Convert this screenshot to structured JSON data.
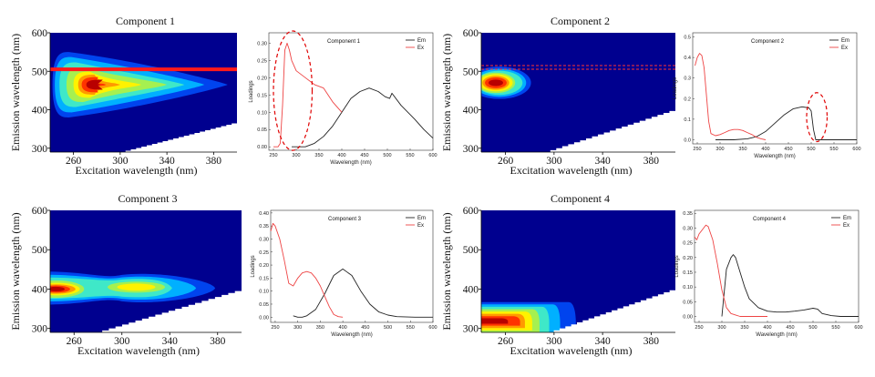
{
  "chart_data": [
    {
      "type": "heatmap",
      "title": "Component 1",
      "xlabel": "Excitation wavelength (nm)",
      "ylabel": "Emission wavelength (nm)",
      "xticks": [
        260,
        300,
        340,
        380
      ],
      "yticks": [
        300,
        400,
        500,
        600
      ],
      "xlim": [
        240,
        400
      ],
      "ylim": [
        290,
        600
      ],
      "peaks": [
        {
          "ex": 278,
          "em": 465
        }
      ],
      "annotation": {
        "type": "horizontal-line",
        "em": 505,
        "style": "solid"
      }
    },
    {
      "type": "line",
      "title": "Component 1",
      "xlabel": "Wavelength (nm)",
      "ylabel": "Loadings",
      "xticks": [
        250,
        300,
        350,
        400,
        450,
        500,
        550,
        600
      ],
      "yticks": [
        0.0,
        0.05,
        0.1,
        0.15,
        0.2,
        0.25,
        0.3
      ],
      "xlim": [
        240,
        600
      ],
      "ylim": [
        -0.01,
        0.33
      ],
      "legend": [
        "Em",
        "Ex"
      ],
      "series": [
        {
          "name": "Em",
          "color": "#222222",
          "x": [
            290,
            320,
            340,
            360,
            380,
            400,
            420,
            440,
            460,
            480,
            495,
            505,
            510,
            530,
            560,
            580,
            600
          ],
          "y": [
            0.0,
            0.0,
            0.01,
            0.03,
            0.06,
            0.1,
            0.14,
            0.16,
            0.17,
            0.16,
            0.145,
            0.14,
            0.155,
            0.12,
            0.08,
            0.05,
            0.025
          ]
        },
        {
          "name": "Ex",
          "color": "#ee4444",
          "x": [
            250,
            260,
            265,
            270,
            275,
            280,
            285,
            290,
            300,
            320,
            340,
            360,
            380,
            400
          ],
          "y": [
            0.0,
            0.0,
            0.01,
            0.12,
            0.28,
            0.3,
            0.28,
            0.25,
            0.22,
            0.2,
            0.18,
            0.17,
            0.13,
            0.1
          ]
        }
      ],
      "annotation": {
        "type": "dashed-ellipse",
        "x_range": [
          250,
          335
        ],
        "y_range": [
          -0.005,
          0.33
        ]
      }
    },
    {
      "type": "heatmap",
      "title": "Component 2",
      "xlabel": "Excitation wavelength (nm)",
      "ylabel": "Emission wavelength (nm)",
      "xticks": [
        260,
        300,
        340,
        380
      ],
      "yticks": [
        300,
        400,
        500,
        600
      ],
      "xlim": [
        240,
        400
      ],
      "ylim": [
        290,
        600
      ],
      "peaks": [
        {
          "ex": 252,
          "em": 470
        }
      ],
      "annotation": {
        "type": "horizontal-line",
        "em": 510,
        "style": "dashed"
      }
    },
    {
      "type": "line",
      "title": "Component 2",
      "xlabel": "Wavelength (nm)",
      "ylabel": "Loadings",
      "xticks": [
        250,
        300,
        350,
        400,
        450,
        500,
        550,
        600
      ],
      "yticks": [
        0.0,
        0.1,
        0.2,
        0.3,
        0.4,
        0.5
      ],
      "xlim": [
        240,
        600
      ],
      "ylim": [
        -0.02,
        0.52
      ],
      "legend": [
        "Em",
        "Ex"
      ],
      "series": [
        {
          "name": "Em",
          "color": "#222222",
          "x": [
            290,
            330,
            360,
            380,
            400,
            420,
            440,
            460,
            480,
            495,
            500,
            505,
            510,
            530,
            560,
            600
          ],
          "y": [
            0.0,
            0.0,
            0.005,
            0.015,
            0.04,
            0.08,
            0.12,
            0.15,
            0.16,
            0.155,
            0.14,
            0.05,
            0.0,
            0.0,
            0.0,
            0.0
          ]
        },
        {
          "name": "Ex",
          "color": "#ee4444",
          "x": [
            245,
            250,
            255,
            260,
            265,
            270,
            275,
            280,
            290,
            300,
            310,
            320,
            330,
            340,
            350,
            360,
            370,
            380,
            390,
            400
          ],
          "y": [
            0.36,
            0.4,
            0.42,
            0.41,
            0.35,
            0.22,
            0.09,
            0.03,
            0.02,
            0.025,
            0.035,
            0.045,
            0.05,
            0.05,
            0.045,
            0.035,
            0.025,
            0.012,
            0.005,
            0.0
          ]
        }
      ],
      "annotation": {
        "type": "dashed-ellipse",
        "x_range": [
          490,
          535
        ],
        "y_range": [
          0.0,
          0.22
        ]
      }
    },
    {
      "type": "heatmap",
      "title": "Component 3",
      "xlabel": "Excitation wavelength (nm)",
      "ylabel": "Emission wavelength (nm)",
      "xticks": [
        260,
        300,
        340,
        380
      ],
      "yticks": [
        300,
        400,
        500,
        600
      ],
      "xlim": [
        240,
        400
      ],
      "ylim": [
        290,
        600
      ],
      "peaks": [
        {
          "ex": 245,
          "em": 400
        },
        {
          "ex": 312,
          "em": 405
        }
      ]
    },
    {
      "type": "line",
      "title": "Component 3",
      "xlabel": "Wavelength (nm)",
      "ylabel": "Loadings",
      "xticks": [
        250,
        300,
        350,
        400,
        450,
        500,
        550,
        600
      ],
      "yticks": [
        0.0,
        0.05,
        0.1,
        0.15,
        0.2,
        0.25,
        0.3,
        0.35,
        0.4
      ],
      "xlim": [
        240,
        600
      ],
      "ylim": [
        -0.02,
        0.41
      ],
      "legend": [
        "Em",
        "Ex"
      ],
      "series": [
        {
          "name": "Em",
          "color": "#222222",
          "x": [
            290,
            300,
            310,
            320,
            340,
            360,
            380,
            400,
            420,
            440,
            460,
            480,
            500,
            520,
            560,
            600
          ],
          "y": [
            0.005,
            0.0,
            0.0,
            0.005,
            0.03,
            0.09,
            0.16,
            0.185,
            0.16,
            0.1,
            0.05,
            0.02,
            0.008,
            0.002,
            0.0,
            0.0
          ]
        },
        {
          "name": "Ex",
          "color": "#ee4444",
          "x": [
            240,
            245,
            250,
            260,
            270,
            280,
            290,
            300,
            310,
            320,
            330,
            340,
            350,
            360,
            370,
            380,
            390,
            400
          ],
          "y": [
            0.33,
            0.36,
            0.35,
            0.3,
            0.22,
            0.13,
            0.12,
            0.15,
            0.17,
            0.175,
            0.17,
            0.15,
            0.12,
            0.08,
            0.04,
            0.01,
            0.002,
            0.0
          ]
        }
      ]
    },
    {
      "type": "heatmap",
      "title": "Component 4",
      "xlabel": "Excitation wavelength (nm)",
      "ylabel": "Emission wavelength (nm)",
      "xticks": [
        260,
        300,
        340,
        380
      ],
      "yticks": [
        300,
        400,
        500,
        600
      ],
      "xlim": [
        240,
        400
      ],
      "ylim": [
        290,
        600
      ],
      "peaks": [
        {
          "ex": 265,
          "em": 325
        }
      ]
    },
    {
      "type": "line",
      "title": "Component 4",
      "xlabel": "Wavelength (nm)",
      "ylabel": "Loadings",
      "xticks": [
        250,
        300,
        350,
        400,
        450,
        500,
        550,
        600
      ],
      "yticks": [
        0.0,
        0.05,
        0.1,
        0.15,
        0.2,
        0.25,
        0.3,
        0.35
      ],
      "xlim": [
        240,
        600
      ],
      "ylim": [
        -0.02,
        0.36
      ],
      "legend": [
        "Em",
        "Ex"
      ],
      "series": [
        {
          "name": "Em",
          "color": "#222222",
          "x": [
            300,
            305,
            310,
            320,
            325,
            330,
            340,
            350,
            360,
            380,
            400,
            420,
            440,
            460,
            480,
            500,
            510,
            520,
            540,
            560,
            600
          ],
          "y": [
            0.0,
            0.08,
            0.16,
            0.2,
            0.21,
            0.2,
            0.15,
            0.1,
            0.06,
            0.03,
            0.018,
            0.015,
            0.015,
            0.018,
            0.022,
            0.028,
            0.025,
            0.01,
            0.003,
            0.0,
            0.0
          ]
        },
        {
          "name": "Ex",
          "color": "#ee4444",
          "x": [
            240,
            245,
            250,
            260,
            265,
            270,
            280,
            290,
            300,
            310,
            320,
            330,
            340,
            360,
            380,
            400
          ],
          "y": [
            0.27,
            0.26,
            0.28,
            0.3,
            0.31,
            0.305,
            0.26,
            0.18,
            0.09,
            0.03,
            0.01,
            0.005,
            0.0,
            0.0,
            0.0,
            0.0
          ]
        }
      ]
    }
  ]
}
